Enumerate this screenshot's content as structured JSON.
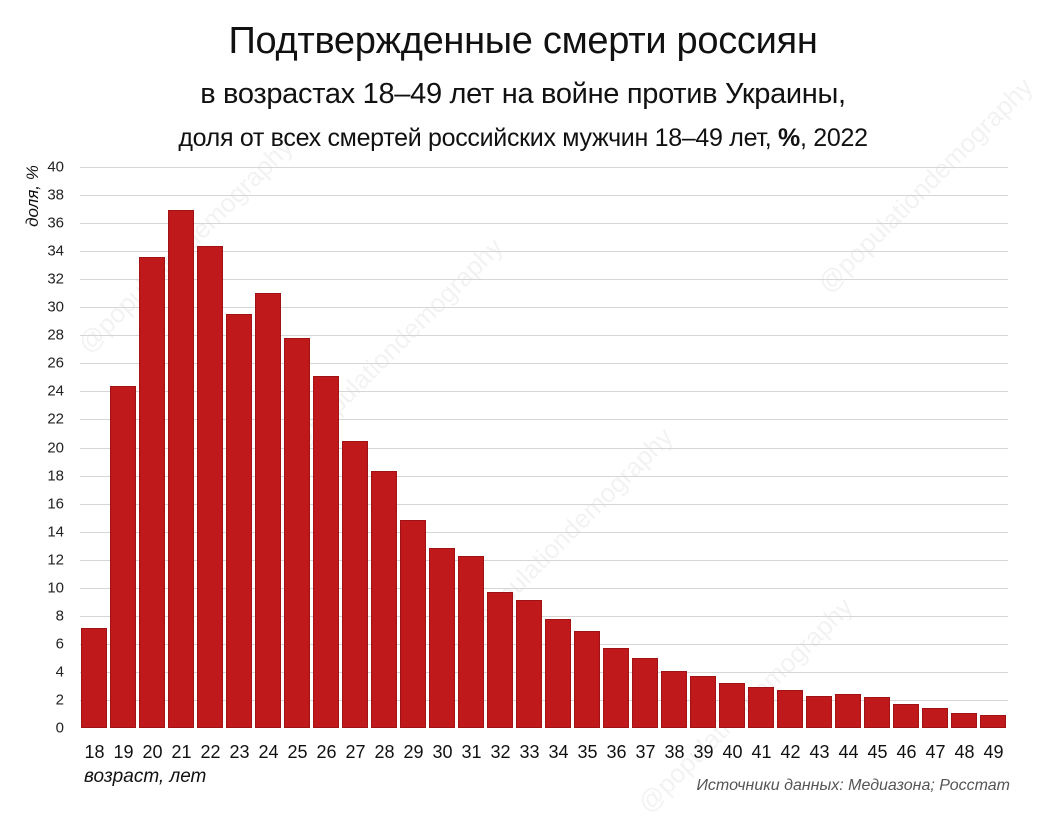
{
  "title": "Подтвержденные смерти россиян",
  "subtitle": "в возрастах 18–49 лет на войне против Украины,",
  "subtitle2_prefix": "доля от всех смертей российских мужчин 18–49 лет, ",
  "subtitle2_bold": "%",
  "subtitle2_suffix": ", 2022",
  "watermark": "@populationdemography",
  "source": "Источники данных: Медиазона; Росстат",
  "colors": {
    "bar": "#c0191b",
    "grid": "#d6d6d6",
    "background": "#ffffff"
  },
  "chart_data": {
    "type": "bar",
    "title": "Подтвержденные смерти россиян в возрастах 18–49 лет на войне против Украины, доля от всех смертей российских мужчин 18–49 лет, %, 2022",
    "xlabel": "возраст, лет",
    "ylabel": "доля, %",
    "ylim": [
      0,
      40
    ],
    "yticks": [
      0,
      2,
      4,
      6,
      8,
      10,
      12,
      14,
      16,
      18,
      20,
      22,
      24,
      26,
      28,
      30,
      32,
      34,
      36,
      38,
      40
    ],
    "grid": true,
    "legend": null,
    "categories": [
      "18",
      "19",
      "20",
      "21",
      "22",
      "23",
      "24",
      "25",
      "26",
      "27",
      "28",
      "29",
      "30",
      "31",
      "32",
      "33",
      "34",
      "35",
      "36",
      "37",
      "38",
      "39",
      "40",
      "41",
      "42",
      "43",
      "44",
      "45",
      "46",
      "47",
      "48",
      "49"
    ],
    "values": [
      7.1,
      24.4,
      33.6,
      36.9,
      34.4,
      29.5,
      31.0,
      27.8,
      25.1,
      20.5,
      18.3,
      14.8,
      12.8,
      12.3,
      9.7,
      9.1,
      7.8,
      6.9,
      5.7,
      5.0,
      4.1,
      3.7,
      3.2,
      2.9,
      2.7,
      2.3,
      2.4,
      2.2,
      1.7,
      1.4,
      1.1,
      0.9
    ],
    "annotations": [
      "Источники данных: Медиазона; Росстат"
    ]
  }
}
